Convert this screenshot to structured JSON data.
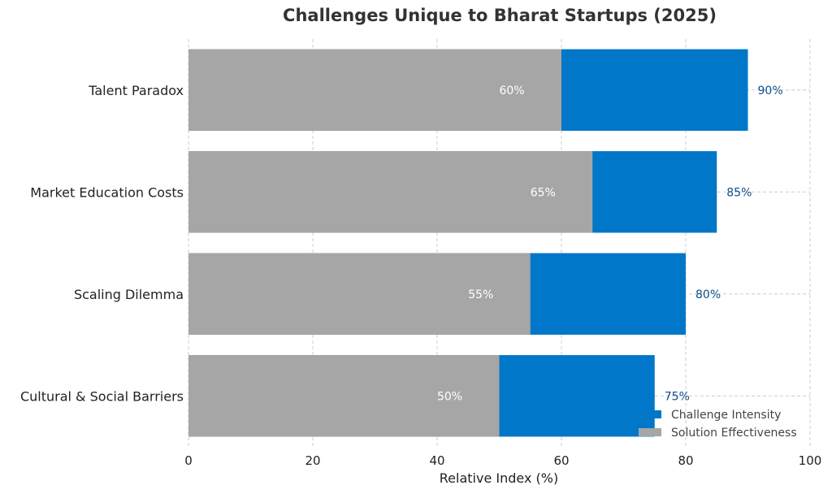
{
  "chart_data": {
    "type": "bar",
    "orientation": "horizontal",
    "title": "Challenges Unique to Bharat Startups (2025)",
    "xlabel": "Relative Index (%)",
    "ylabel": "",
    "xlim": [
      0,
      100
    ],
    "xticks": [
      0,
      20,
      40,
      60,
      80,
      100
    ],
    "grid": true,
    "legend_position": "bottom-right",
    "categories": [
      "Talent Paradox",
      "Market Education Costs",
      "Scaling Dilemma",
      "Cultural & Social Barriers"
    ],
    "series": [
      {
        "name": "Challenge Intensity",
        "color": "#0077c8",
        "values": [
          90,
          85,
          80,
          75
        ],
        "labels": [
          "90%",
          "85%",
          "80%",
          "75%"
        ]
      },
      {
        "name": "Solution Effectiveness",
        "color": "#a6a6a6",
        "values": [
          60,
          65,
          55,
          50
        ],
        "labels": [
          "60%",
          "65%",
          "55%",
          "50%"
        ]
      }
    ]
  }
}
